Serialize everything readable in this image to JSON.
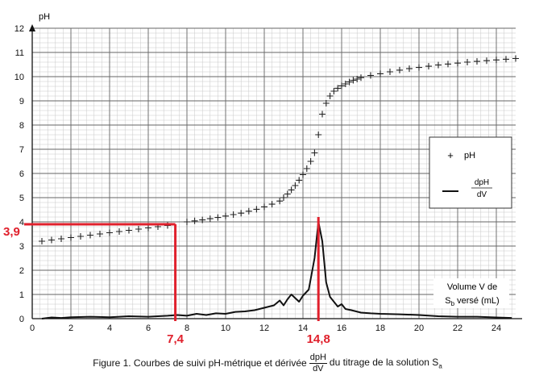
{
  "chart_data": {
    "type": "scatter",
    "x_axis": {
      "label": "",
      "range": [
        0,
        25
      ],
      "ticks": [
        0,
        2,
        4,
        6,
        8,
        10,
        12,
        14,
        16,
        18,
        20,
        22,
        24
      ],
      "minor_step": 0.4
    },
    "y_axis": {
      "label": "pH",
      "range": [
        0,
        12
      ],
      "ticks": [
        0,
        1,
        2,
        3,
        4,
        5,
        6,
        7,
        8,
        9,
        10,
        11,
        12
      ],
      "minor_step": 0.2
    },
    "grid": true,
    "legend": {
      "placement": "right",
      "entries": [
        {
          "marker": "+",
          "label": "pH"
        },
        {
          "marker": "line",
          "label_num": "dpH",
          "label_den": "dV"
        }
      ]
    },
    "volume_label": {
      "line1": "Volume V de",
      "line2_pre": "S",
      "line2_sub": "b",
      "line2_post": " versé (mL)"
    },
    "series": [
      {
        "marker": "+",
        "color": "#222222",
        "points": [
          [
            0.5,
            3.2
          ],
          [
            1.0,
            3.25
          ],
          [
            1.5,
            3.3
          ],
          [
            2.0,
            3.35
          ],
          [
            2.5,
            3.4
          ],
          [
            3.0,
            3.45
          ],
          [
            3.5,
            3.5
          ],
          [
            4.0,
            3.55
          ],
          [
            4.5,
            3.6
          ],
          [
            5.0,
            3.65
          ],
          [
            5.5,
            3.7
          ],
          [
            6.0,
            3.75
          ],
          [
            6.5,
            3.8
          ],
          [
            7.0,
            3.85
          ],
          [
            8.0,
            4.0
          ],
          [
            8.4,
            4.04
          ],
          [
            8.8,
            4.08
          ],
          [
            9.2,
            4.13
          ],
          [
            9.6,
            4.18
          ],
          [
            10.0,
            4.24
          ],
          [
            10.4,
            4.3
          ],
          [
            10.8,
            4.36
          ],
          [
            11.2,
            4.44
          ],
          [
            11.6,
            4.52
          ],
          [
            12.0,
            4.62
          ],
          [
            12.4,
            4.73
          ],
          [
            12.8,
            4.86
          ],
          [
            13.0,
            5.0
          ],
          [
            13.2,
            5.15
          ],
          [
            13.4,
            5.32
          ],
          [
            13.6,
            5.5
          ],
          [
            13.8,
            5.72
          ],
          [
            14.0,
            5.95
          ],
          [
            14.2,
            6.2
          ],
          [
            14.4,
            6.5
          ],
          [
            14.6,
            6.85
          ],
          [
            14.8,
            7.6
          ],
          [
            15.0,
            8.45
          ],
          [
            15.2,
            8.9
          ],
          [
            15.4,
            9.2
          ],
          [
            15.6,
            9.4
          ],
          [
            15.8,
            9.52
          ],
          [
            16.0,
            9.62
          ],
          [
            16.2,
            9.7
          ],
          [
            16.4,
            9.78
          ],
          [
            16.6,
            9.85
          ],
          [
            16.8,
            9.9
          ],
          [
            17.0,
            9.96
          ],
          [
            17.5,
            10.05
          ],
          [
            18.0,
            10.12
          ],
          [
            18.5,
            10.2
          ],
          [
            19.0,
            10.27
          ],
          [
            19.5,
            10.33
          ],
          [
            20.0,
            10.38
          ],
          [
            20.5,
            10.43
          ],
          [
            21.0,
            10.48
          ],
          [
            21.5,
            10.52
          ],
          [
            22.0,
            10.56
          ],
          [
            22.5,
            10.6
          ],
          [
            23.0,
            10.63
          ],
          [
            23.5,
            10.66
          ],
          [
            24.0,
            10.69
          ],
          [
            24.5,
            10.72
          ],
          [
            25.0,
            10.75
          ]
        ]
      },
      {
        "marker": "line",
        "color": "#111111",
        "points": [
          [
            0.5,
            0.0
          ],
          [
            1.0,
            0.05
          ],
          [
            1.5,
            0.03
          ],
          [
            2.0,
            0.06
          ],
          [
            3.0,
            0.08
          ],
          [
            4.0,
            0.06
          ],
          [
            5.0,
            0.1
          ],
          [
            6.0,
            0.08
          ],
          [
            7.0,
            0.12
          ],
          [
            7.5,
            0.15
          ],
          [
            8.0,
            0.12
          ],
          [
            8.5,
            0.2
          ],
          [
            9.0,
            0.15
          ],
          [
            9.5,
            0.22
          ],
          [
            10.0,
            0.2
          ],
          [
            10.5,
            0.28
          ],
          [
            11.0,
            0.3
          ],
          [
            11.5,
            0.35
          ],
          [
            12.0,
            0.45
          ],
          [
            12.5,
            0.55
          ],
          [
            12.8,
            0.75
          ],
          [
            13.0,
            0.55
          ],
          [
            13.2,
            0.8
          ],
          [
            13.4,
            1.0
          ],
          [
            13.6,
            0.85
          ],
          [
            13.8,
            0.7
          ],
          [
            14.0,
            0.95
          ],
          [
            14.3,
            1.2
          ],
          [
            14.6,
            2.5
          ],
          [
            14.8,
            4.0
          ],
          [
            15.0,
            3.2
          ],
          [
            15.2,
            1.5
          ],
          [
            15.4,
            0.9
          ],
          [
            15.6,
            0.7
          ],
          [
            15.8,
            0.5
          ],
          [
            16.0,
            0.6
          ],
          [
            16.2,
            0.4
          ],
          [
            16.5,
            0.35
          ],
          [
            17.0,
            0.25
          ],
          [
            17.5,
            0.22
          ],
          [
            18.0,
            0.2
          ],
          [
            19.0,
            0.18
          ],
          [
            20.0,
            0.15
          ],
          [
            21.0,
            0.1
          ],
          [
            22.0,
            0.08
          ],
          [
            23.0,
            0.08
          ],
          [
            24.0,
            0.05
          ],
          [
            24.8,
            0.03
          ]
        ]
      }
    ],
    "annotations": [
      {
        "text": "3,9",
        "kind": "y-marker",
        "x": 7.4,
        "y": 3.9,
        "color": "#e0202c"
      },
      {
        "text": "7,4",
        "kind": "x-marker",
        "x": 7.4,
        "color": "#e0202c"
      },
      {
        "text": "14,8",
        "kind": "x-marker",
        "x": 14.8,
        "y": 4.2,
        "color": "#e0202c"
      }
    ]
  },
  "caption": {
    "before": "Figure 1. Courbes de suivi pH-métrique et dérivée",
    "frac_num": "dpH",
    "frac_den": "dV",
    "after_pre": "du titrage de la solution S",
    "after_sub": "a"
  }
}
